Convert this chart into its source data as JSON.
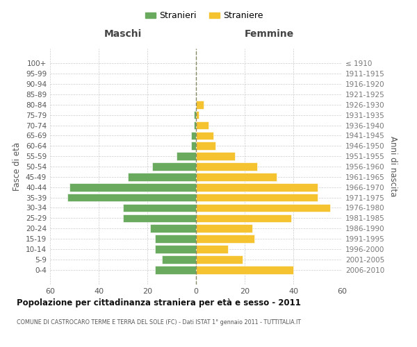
{
  "age_groups": [
    "100+",
    "95-99",
    "90-94",
    "85-89",
    "80-84",
    "75-79",
    "70-74",
    "65-69",
    "60-64",
    "55-59",
    "50-54",
    "45-49",
    "40-44",
    "35-39",
    "30-34",
    "25-29",
    "20-24",
    "15-19",
    "10-14",
    "5-9",
    "0-4"
  ],
  "birth_years": [
    "≤ 1910",
    "1911-1915",
    "1916-1920",
    "1921-1925",
    "1926-1930",
    "1931-1935",
    "1936-1940",
    "1941-1945",
    "1946-1950",
    "1951-1955",
    "1956-1960",
    "1961-1965",
    "1966-1970",
    "1971-1975",
    "1976-1980",
    "1981-1985",
    "1986-1990",
    "1991-1995",
    "1996-2000",
    "2001-2005",
    "2006-2010"
  ],
  "maschi": [
    0,
    0,
    0,
    0,
    0,
    1,
    1,
    2,
    2,
    8,
    18,
    28,
    52,
    53,
    30,
    30,
    19,
    17,
    17,
    14,
    17
  ],
  "femmine": [
    0,
    0,
    0,
    0,
    3,
    1,
    5,
    7,
    8,
    16,
    25,
    33,
    50,
    50,
    55,
    39,
    23,
    24,
    13,
    19,
    40
  ],
  "male_color": "#6aaa5e",
  "female_color": "#f5c330",
  "background_color": "#ffffff",
  "grid_color": "#cccccc",
  "title": "Popolazione per cittadinanza straniera per età e sesso - 2011",
  "subtitle": "COMUNE DI CASTROCARO TERME E TERRA DEL SOLE (FC) - Dati ISTAT 1° gennaio 2011 - TUTTITALIA.IT",
  "xlabel_left": "Maschi",
  "xlabel_right": "Femmine",
  "ylabel_left": "Fasce di età",
  "ylabel_right": "Anni di nascita",
  "legend_male": "Stranieri",
  "legend_female": "Straniere",
  "xlim": 60
}
